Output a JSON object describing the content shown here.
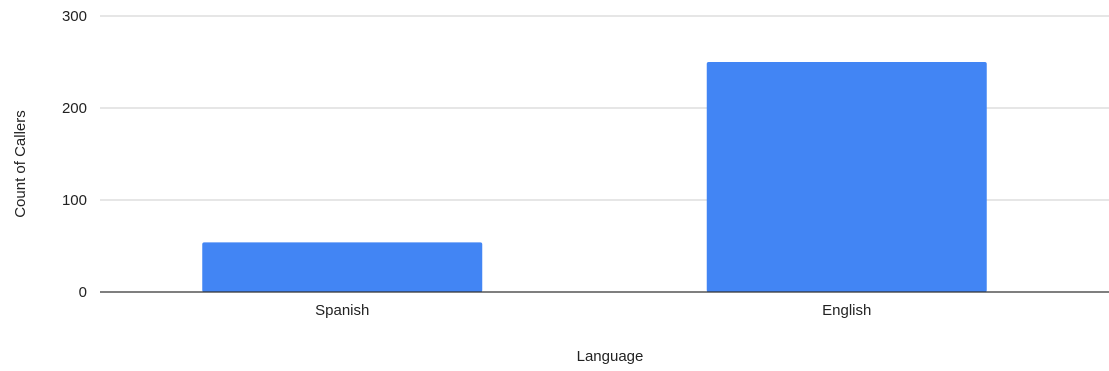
{
  "chart_data": {
    "type": "bar",
    "title": "",
    "xlabel": "Language",
    "ylabel": "Count of Callers",
    "categories": [
      "Spanish",
      "English"
    ],
    "series": [
      {
        "values": [
          54,
          250
        ]
      }
    ],
    "ylim": [
      0,
      300
    ],
    "yticks": [
      "0",
      "100",
      "200",
      "300"
    ],
    "grid": true,
    "legend": "none",
    "bar_color": "#4285f4",
    "grid_color": "#cccccc",
    "baseline_color": "#333333"
  }
}
